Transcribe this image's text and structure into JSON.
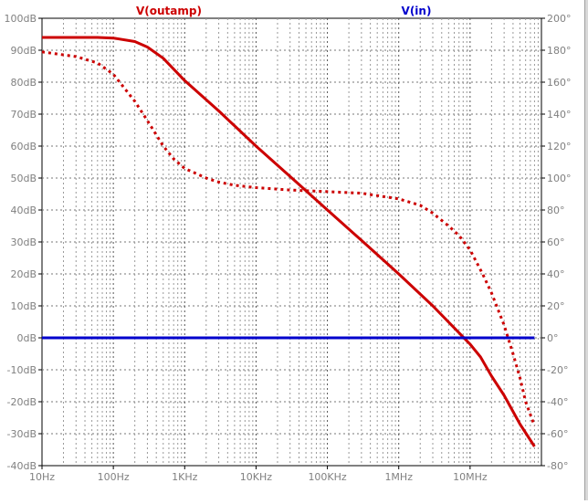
{
  "chart_data": {
    "type": "line",
    "title": "",
    "xaxis": {
      "scale": "log",
      "range_hz": [
        10,
        100000000
      ],
      "tick_values": [
        10,
        100,
        1000,
        10000,
        100000,
        1000000,
        10000000
      ],
      "tick_labels": [
        "10Hz",
        "100Hz",
        "1KHz",
        "10KHz",
        "100KHz",
        "1MHz",
        "10MHz"
      ]
    },
    "yaxis_left": {
      "unit": "dB",
      "range": [
        -40,
        100
      ],
      "tick_values": [
        100,
        90,
        80,
        70,
        60,
        50,
        40,
        30,
        20,
        10,
        0,
        -10,
        -20,
        -30,
        -40
      ],
      "tick_labels": [
        "100dB",
        "90dB",
        "80dB",
        "70dB",
        "60dB",
        "50dB",
        "40dB",
        "30dB",
        "20dB",
        "10dB",
        "0dB",
        "-10dB",
        "-20dB",
        "-30dB",
        "-40dB"
      ]
    },
    "yaxis_right": {
      "unit": "degrees",
      "range": [
        -80,
        200
      ],
      "tick_values": [
        200,
        180,
        160,
        140,
        120,
        100,
        80,
        60,
        40,
        20,
        0,
        -20,
        -40,
        -60,
        -80
      ],
      "tick_labels": [
        "200°",
        "180°",
        "160°",
        "140°",
        "120°",
        "100°",
        "80°",
        "60°",
        "40°",
        "20°",
        "0°",
        "-20°",
        "-40°",
        "-60°",
        "-80°"
      ]
    },
    "grid": true,
    "legend": [
      {
        "label": "V(outamp)",
        "color": "#cc0000"
      },
      {
        "label": "V(in)",
        "color": "#0000cc"
      }
    ],
    "series": [
      {
        "name": "V(outamp)",
        "quantity": "magnitude",
        "axis": "left",
        "color": "#cc0000",
        "style": "solid",
        "x": [
          10,
          30,
          60,
          100,
          200,
          300,
          500,
          1000,
          3000,
          10000,
          30000,
          100000,
          300000,
          1000000,
          3000000,
          10000000,
          14000000,
          20000000,
          30000000,
          50000000,
          80000000
        ],
        "y": [
          94,
          94,
          94,
          93.8,
          92.7,
          91,
          87.5,
          80.5,
          71,
          60,
          50.5,
          40,
          30.5,
          20,
          10,
          -2,
          -6,
          -12,
          -18,
          -27,
          -34
        ]
      },
      {
        "name": "V(outamp)",
        "quantity": "phase",
        "axis": "right",
        "color": "#cc0000",
        "style": "dotted",
        "x": [
          10,
          30,
          60,
          100,
          200,
          300,
          500,
          700,
          1000,
          2000,
          3000,
          5000,
          10000,
          30000,
          100000,
          300000,
          1000000,
          2000000,
          3000000,
          5000000,
          7000000,
          10000000,
          15000000,
          20000000,
          30000000,
          40000000,
          50000000,
          60000000,
          80000000
        ],
        "y": [
          179,
          176,
          172,
          165,
          148,
          136,
          120,
          112,
          106,
          100,
          97.5,
          95.5,
          94,
          92.5,
          91.5,
          90.5,
          87,
          83,
          78,
          70,
          64,
          55,
          40,
          28,
          8,
          -10,
          -25,
          -40,
          -55
        ]
      },
      {
        "name": "V(in)",
        "quantity": "magnitude",
        "axis": "left",
        "color": "#0000cc",
        "style": "solid",
        "x": [
          10,
          80000000
        ],
        "y": [
          0,
          0
        ]
      }
    ]
  }
}
